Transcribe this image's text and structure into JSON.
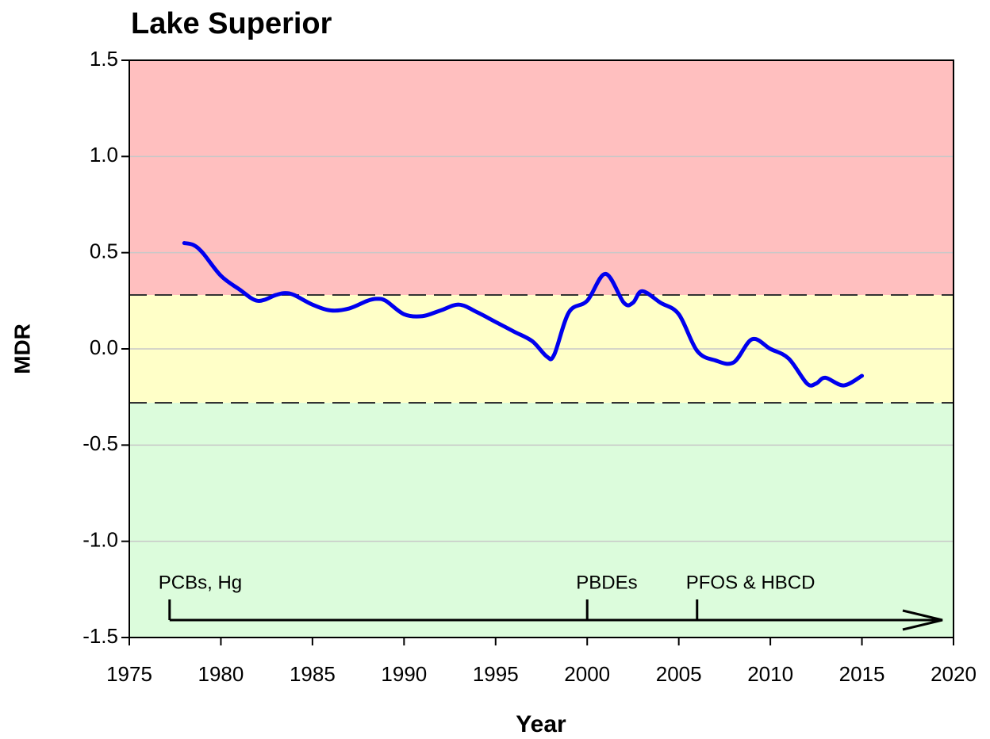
{
  "chart_data": {
    "type": "line",
    "title": "Lake Superior",
    "x_label": "Year",
    "y_label": "MDR",
    "xlim": [
      1975,
      2020
    ],
    "ylim": [
      -1.5,
      1.5
    ],
    "xticks": [
      1975,
      1980,
      1985,
      1990,
      1995,
      2000,
      2005,
      2010,
      2015,
      2020
    ],
    "yticks": [
      {
        "value": 1.5,
        "label": "1.5"
      },
      {
        "value": 1.0,
        "label": "1.0"
      },
      0.5,
      {
        "value": 0,
        "label": "0.0"
      },
      -0.5,
      {
        "value": -1.0,
        "label": "-1.0"
      },
      -1.5
    ],
    "grid": true,
    "bands": [
      {
        "from": 0.28,
        "to": 1.5,
        "color": "#ffbfbf"
      },
      {
        "from": -0.28,
        "to": 0.28,
        "color": "#ffffc8"
      },
      {
        "from": -1.5,
        "to": -0.28,
        "color": "#dcfcdc"
      }
    ],
    "series": [
      {
        "name": "MDR",
        "color": "#0000ee",
        "x": [
          1978,
          1978.5,
          1979,
          1980,
          1981,
          1982,
          1983,
          1983.5,
          1984,
          1985,
          1986,
          1987,
          1988,
          1988.5,
          1989,
          1990,
          1991,
          1992,
          1993,
          1994,
          1995,
          1996,
          1997,
          1997.8,
          1998.2,
          1999,
          2000,
          2001,
          2002,
          2002.5,
          2003,
          2004,
          2005,
          2006,
          2007,
          2008,
          2009,
          2010,
          2011,
          2012,
          2012.5,
          2013,
          2014,
          2015
        ],
        "values": [
          0.55,
          0.54,
          0.5,
          0.38,
          0.31,
          0.25,
          0.28,
          0.29,
          0.28,
          0.23,
          0.2,
          0.21,
          0.25,
          0.26,
          0.25,
          0.18,
          0.17,
          0.2,
          0.23,
          0.19,
          0.14,
          0.09,
          0.04,
          -0.04,
          -0.03,
          0.19,
          0.25,
          0.39,
          0.24,
          0.24,
          0.3,
          0.24,
          0.18,
          -0.01,
          -0.06,
          -0.07,
          0.05,
          0.0,
          -0.05,
          -0.18,
          -0.18,
          -0.15,
          -0.19,
          -0.14
        ]
      }
    ],
    "annotations": [
      {
        "text": "PCBs, Hg",
        "x": 1977.2
      },
      {
        "text": "PBDEs",
        "x": 2000
      },
      {
        "text": "PFOS & HBCD",
        "x": 2006
      }
    ]
  }
}
